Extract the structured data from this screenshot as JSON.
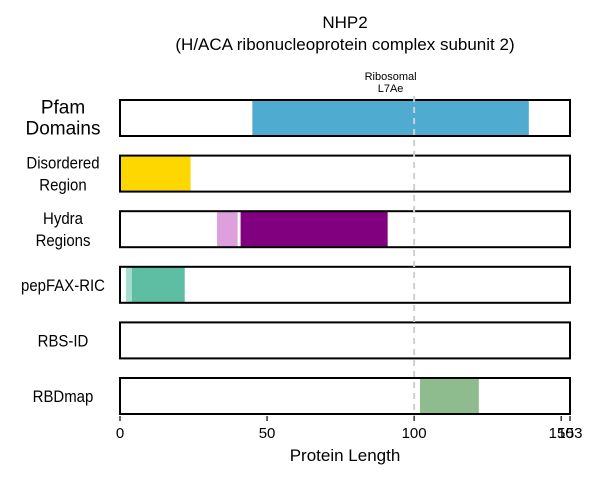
{
  "chart_data": {
    "type": "bar",
    "title": "NHP2",
    "subtitle": "(H/ACA ribonucleoprotein complex subunit 2)",
    "xlabel": "Protein Length",
    "xlim": [
      0,
      153
    ],
    "x_ticks": [
      0,
      50,
      100,
      150,
      153
    ],
    "x_tick_labels": [
      "0",
      "50",
      "100",
      "150",
      "153"
    ],
    "reference_line": 100,
    "tracks": [
      {
        "name_lines": [
          "Pfam",
          "Domains"
        ],
        "label_style": "large",
        "segments": [
          {
            "start": 45,
            "end": 139,
            "color": "#4FABD0",
            "label_lines": [
              "Ribosomal",
              "L7Ae"
            ]
          }
        ]
      },
      {
        "name_lines": [
          "Disordered",
          "Region"
        ],
        "segments": [
          {
            "start": 0,
            "end": 24,
            "color": "#FFD700"
          }
        ]
      },
      {
        "name_lines": [
          "Hydra",
          "Regions"
        ],
        "segments": [
          {
            "start": 33,
            "end": 40,
            "color": "#DDA0DD"
          },
          {
            "start": 41,
            "end": 91,
            "color": "#800080"
          }
        ]
      },
      {
        "name_lines": [
          "pepFAX-RIC"
        ],
        "segments": [
          {
            "start": 2,
            "end": 4,
            "color": "#A6DDD1"
          },
          {
            "start": 4,
            "end": 22,
            "color": "#5DBEA3"
          }
        ]
      },
      {
        "name_lines": [
          "RBS-ID"
        ],
        "segments": []
      },
      {
        "name_lines": [
          "RBDmap"
        ],
        "segments": [
          {
            "start": 102,
            "end": 122,
            "color": "#8FBC8F"
          }
        ]
      }
    ]
  }
}
